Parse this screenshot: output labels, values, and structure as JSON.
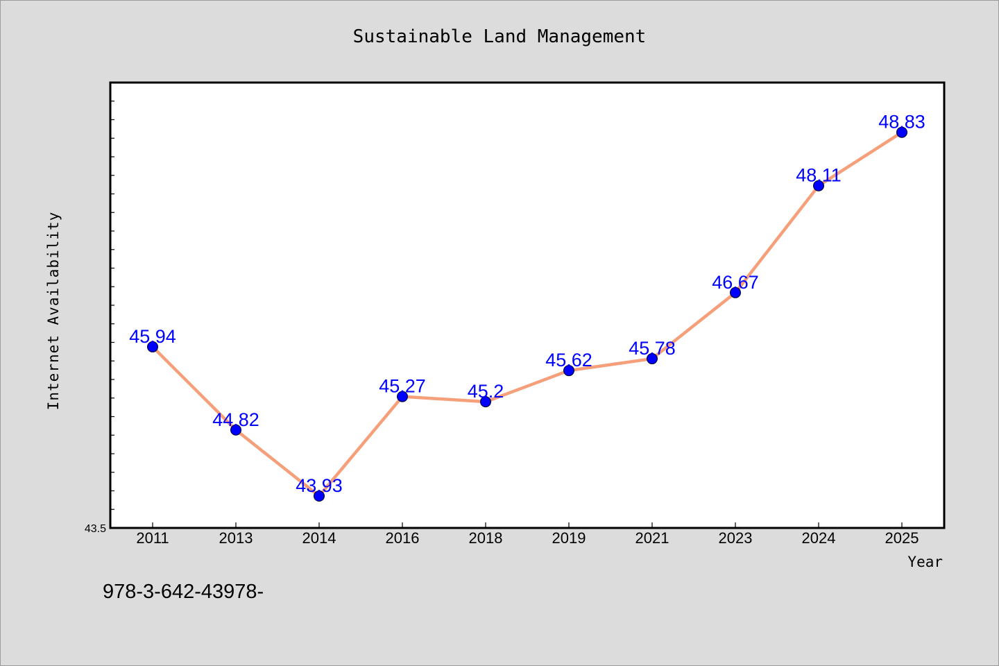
{
  "chart_data": {
    "type": "line",
    "title": "Sustainable Land Management",
    "xlabel": "Year",
    "ylabel": "Internet Availability",
    "categories": [
      "2011",
      "2013",
      "2014",
      "2016",
      "2018",
      "2019",
      "2021",
      "2023",
      "2024",
      "2025"
    ],
    "series": [
      {
        "values": [
          45.94,
          44.82,
          43.93,
          45.27,
          45.2,
          45.62,
          45.78,
          46.67,
          48.11,
          48.83
        ]
      }
    ],
    "data_labels": [
      "45.94",
      "44.82",
      "43.93",
      "45.27",
      "45.2",
      "45.62",
      "45.78",
      "46.67",
      "48.11",
      "48.83"
    ],
    "ytick_labels": [
      "43.5"
    ],
    "ylim": [
      43.5,
      49.5
    ],
    "grid": false,
    "line_color": "#f5a07a",
    "marker_color": "#0000ff",
    "label_color": "#0000ff"
  },
  "footer": {
    "text": "978-3-642-43978-"
  }
}
